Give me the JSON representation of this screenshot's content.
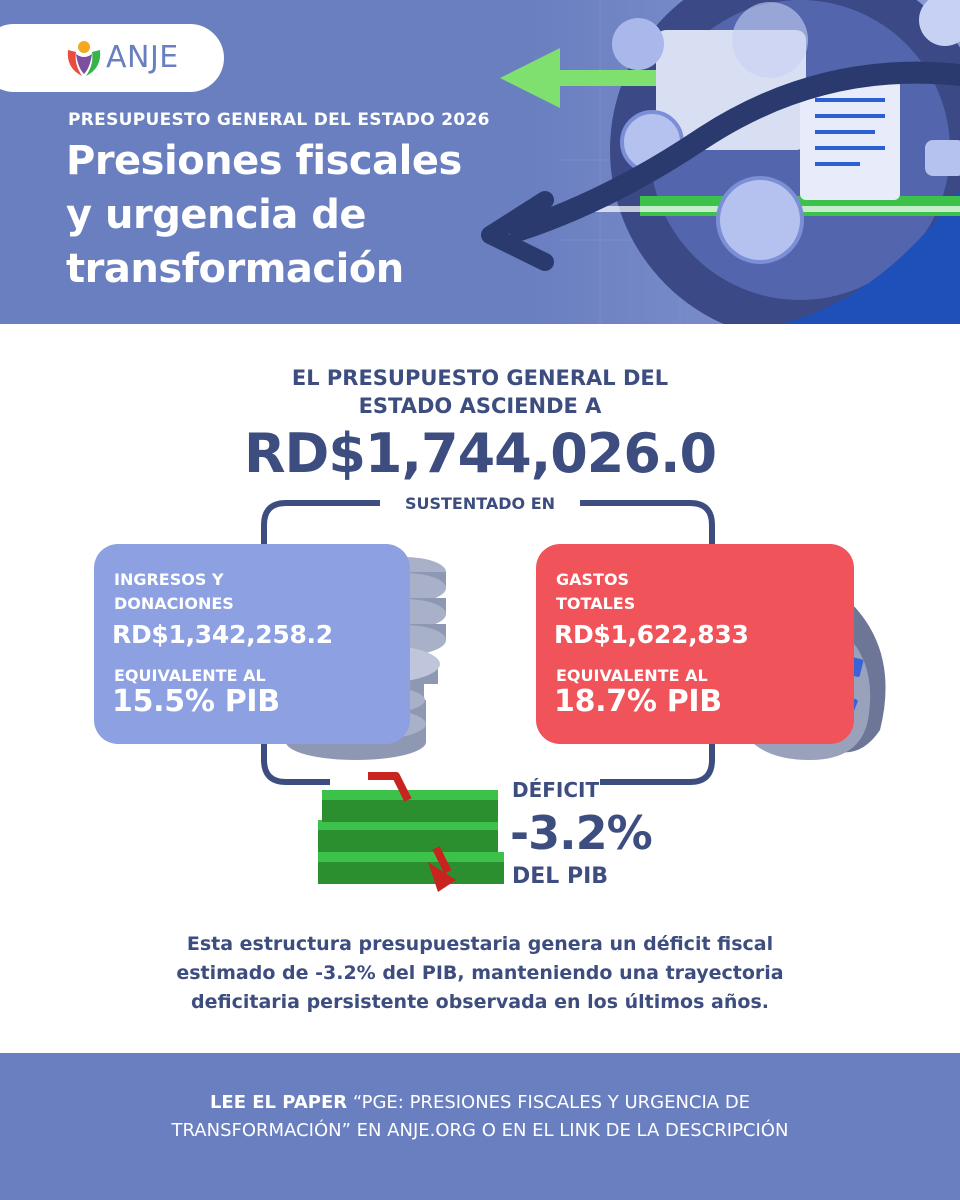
{
  "brand": {
    "name": "ANJE"
  },
  "header": {
    "kicker": "PRESUPUESTO GENERAL DEL ESTADO 2026",
    "title_lines": [
      "Presiones fiscales",
      "y urgencia de",
      "transformación"
    ]
  },
  "intro": {
    "lines": [
      "EL PRESUPUESTO GENERAL DEL",
      "ESTADO ASCIENDE A"
    ],
    "total": "RD$1,744,026.0",
    "connector": "SUSTENTADO EN"
  },
  "income": {
    "label_lines": [
      "INGRESOS Y",
      "DONACIONES"
    ],
    "amount": "RD$1,342,258.2",
    "equiv": "EQUIVALENTE AL",
    "pct": "15.5% PIB"
  },
  "spending": {
    "label_lines": [
      "GASTOS",
      "TOTALES"
    ],
    "amount": "RD$1,622,833",
    "equiv": "EQUIVALENTE AL",
    "pct": "18.7% PIB"
  },
  "deficit": {
    "label": "DÉFICIT",
    "value": "-3.2%",
    "unit": "DEL PIB"
  },
  "description_lines": [
    "Esta estructura presupuestaria genera un déficit fiscal",
    "estimado de -3.2% del PIB, manteniendo una trayectoria",
    "deficitaria persistente observada en los últimos años."
  ],
  "footer": {
    "lead": "LEE EL PAPER",
    "line1_rest": " “PGE: PRESIONES FISCALES Y URGENCIA DE",
    "line2": "TRANSFORMACIÓN” EN ANJE.ORG O EN EL LINK DE LA DESCRIPCIÓN"
  },
  "colors": {
    "header_bg": "#6a7fc0",
    "text_dark": "#3d4d7f",
    "income_card": "#8ca0e2",
    "spending_card": "#f0545a",
    "money_green": "#3cc24a"
  },
  "icons": [
    "logo-icon",
    "coins-icon",
    "money-bag-icon",
    "cash-stack-icon",
    "trend-arrow-icon"
  ]
}
